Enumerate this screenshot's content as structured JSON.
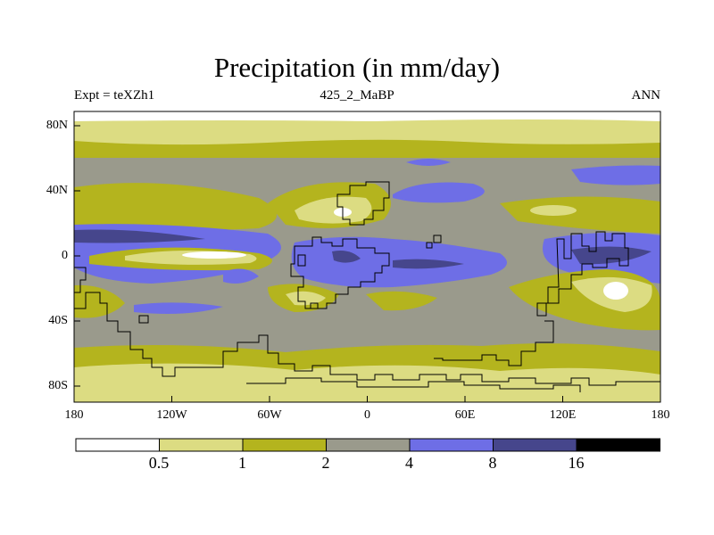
{
  "title": "Precipitation (in mm/day)",
  "subtitle_left": "Expt = teXZh1",
  "subtitle_center": "425_2_MaBP",
  "subtitle_right": "ANN",
  "lat_labels": [
    "80N",
    "40N",
    "0",
    "40S",
    "80S"
  ],
  "lon_labels": [
    "180",
    "120W",
    "60W",
    "0",
    "60E",
    "120E",
    "180"
  ],
  "colorbar": {
    "labels": [
      "0.5",
      "1",
      "2",
      "4",
      "8",
      "16"
    ],
    "colors": [
      "#ffffff",
      "#dcdc82",
      "#b4b41e",
      "#9a9a8c",
      "#6e6ee6",
      "#46468c",
      "#000000"
    ]
  },
  "colors": {
    "coastline": "#000000",
    "frame": "#000000"
  }
}
